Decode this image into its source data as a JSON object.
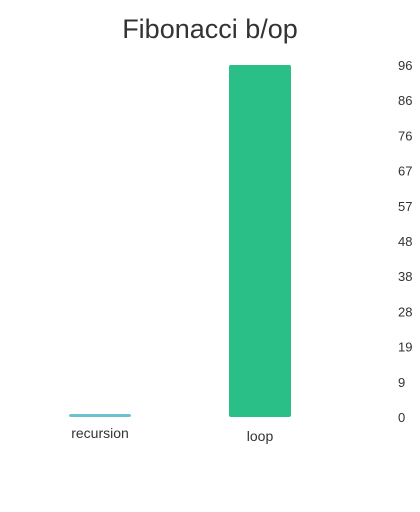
{
  "chart_data": {
    "type": "bar",
    "title": "Fibonacci b/op",
    "categories": [
      "recursion",
      "loop"
    ],
    "values": [
      0,
      96
    ],
    "bar_colors": [
      "#6cc3cf",
      "#2bbf88"
    ],
    "ylim": [
      0,
      96
    ],
    "yticks": [
      "0",
      "9",
      "19",
      "28",
      "38",
      "48",
      "57",
      "67",
      "76",
      "86",
      "96"
    ],
    "y_axis_position": "right",
    "grid": false,
    "legend": "none"
  }
}
